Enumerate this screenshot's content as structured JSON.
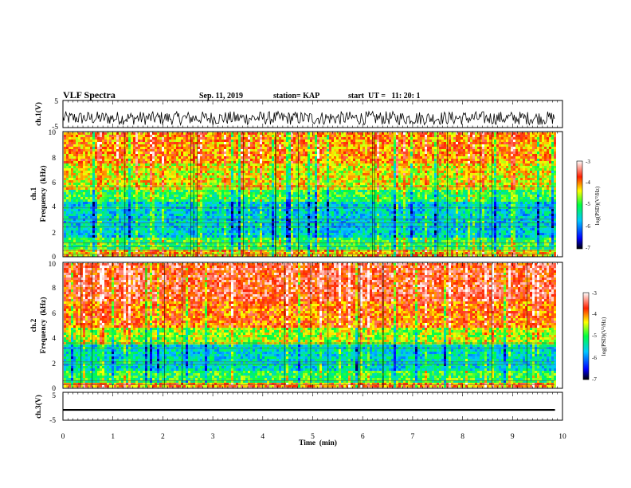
{
  "header": {
    "title": "VLF Spectra",
    "date": "Sep. 11, 2019",
    "station": "station= KAP",
    "start": "start  UT =   11: 20: 1"
  },
  "chart_data": [
    {
      "type": "line",
      "id": "ch1_waveform",
      "ylabel": "ch.1(V)",
      "ylim": [
        -5,
        5
      ],
      "yticks": [
        "5",
        "-5"
      ],
      "xlim": [
        0,
        10
      ],
      "data_extent_min": [
        0,
        9.85
      ],
      "description_values": {
        "mean": -1.5,
        "amplitude": 2.5
      }
    },
    {
      "type": "heatmap",
      "id": "ch1_spectrogram",
      "ylabel": "ch.1\nFrequency (kHz)",
      "ylabel_lines": [
        "ch.1",
        "Frequency  (kHz)"
      ],
      "ylim": [
        0,
        10
      ],
      "yticks": [
        "0",
        "2",
        "4",
        "6",
        "8",
        "10"
      ],
      "xlim": [
        0,
        10
      ],
      "data_extent_min": [
        0,
        9.85
      ],
      "bands_khz": [
        {
          "from": 0,
          "to": 0.6,
          "level": -4.2
        },
        {
          "from": 0.6,
          "to": 1.6,
          "level": -5.0
        },
        {
          "from": 1.6,
          "to": 4.5,
          "level": -5.6
        },
        {
          "from": 4.5,
          "to": 5.5,
          "level": -5.0
        },
        {
          "from": 5.5,
          "to": 7.5,
          "level": -4.4
        },
        {
          "from": 7.5,
          "to": 10,
          "level": -4.0
        }
      ],
      "hum_lines_khz": [
        0.2,
        0.5,
        0.8,
        1.1,
        2.4,
        2.7,
        3.0,
        3.9,
        5.6
      ],
      "colorbar": {
        "label": "log(PSD)(V²/Hz)",
        "range": [
          -7,
          -3
        ],
        "ticks": [
          "-3",
          "-4",
          "-5",
          "-6",
          "-7"
        ]
      }
    },
    {
      "type": "heatmap",
      "id": "ch2_spectrogram",
      "ylabel": "ch.2\nFrequency (kHz)",
      "ylabel_lines": [
        "ch.2",
        "Frequency  (kHz)"
      ],
      "ylim": [
        0,
        10
      ],
      "yticks": [
        "0",
        "2",
        "4",
        "6",
        "8",
        "10"
      ],
      "xlim": [
        0,
        10
      ],
      "data_extent_min": [
        0,
        9.85
      ],
      "bands_khz": [
        {
          "from": 0,
          "to": 0.5,
          "level": -4.0
        },
        {
          "from": 0.5,
          "to": 1.5,
          "level": -5.0
        },
        {
          "from": 1.5,
          "to": 3.5,
          "level": -5.5
        },
        {
          "from": 3.5,
          "to": 5.0,
          "level": -4.6
        },
        {
          "from": 5.0,
          "to": 7.0,
          "level": -3.9
        },
        {
          "from": 7.0,
          "to": 10,
          "level": -3.6
        }
      ],
      "hum_lines_khz": [
        0.3,
        0.6,
        1.9,
        2.1,
        3.2,
        3.6
      ],
      "colorbar": {
        "label": "log(PSD)(V²/Hz)",
        "range": [
          -7,
          -3
        ],
        "ticks": [
          "-3",
          "-4",
          "-5",
          "-6",
          "-7"
        ]
      }
    },
    {
      "type": "line",
      "id": "ch3_waveform",
      "ylabel": "ch.3(V)",
      "ylim": [
        -5,
        5
      ],
      "yticks": [
        "5",
        "-5"
      ],
      "xlim": [
        0,
        10
      ],
      "data_extent_min": [
        0,
        9.85
      ],
      "description_values": {
        "mean": -1.3,
        "amplitude": 0.3
      },
      "xlabel": "Time  (min)",
      "xticks": [
        "0",
        "1",
        "2",
        "3",
        "4",
        "5",
        "6",
        "7",
        "8",
        "9",
        "10"
      ]
    }
  ]
}
